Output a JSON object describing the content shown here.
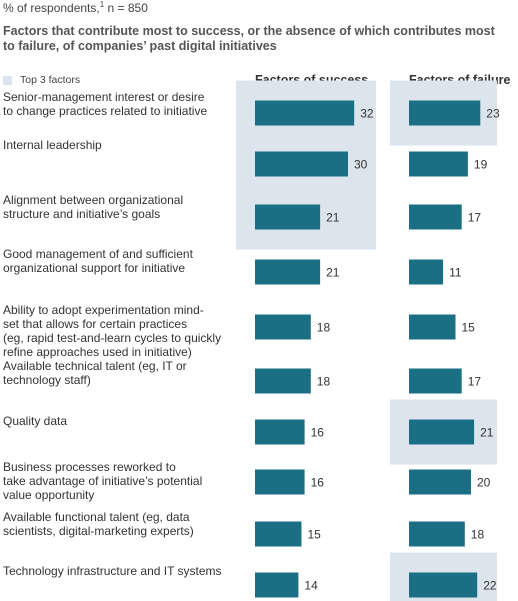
{
  "header": {
    "respondents_prefix": "% of respondents,",
    "respondents_sup": "1",
    "respondents_suffix": " n = 850",
    "title": "Factors that contribute most to success, or the absence of which contributes most to failure, of companies’ past digital initiatives",
    "legend_label": "Top 3 factors"
  },
  "colors": {
    "bar": "#1b6f84",
    "highlight": "#dce5ed",
    "text": "#333333"
  },
  "chart_data": {
    "type": "bar",
    "orientation": "horizontal",
    "categories": [
      "Senior-management interest or desire to change practices related to initiative",
      "Internal leadership",
      "Alignment between organizational structure and initiative’s goals",
      "Good management of and sufficient organizational support for initiative",
      "Ability to adopt experimentation mind-set that allows for certain practices (eg, rapid test-and-learn cycles to quickly refine approaches used in initiative)",
      "Available technical talent (eg, IT or technology staff)",
      "Quality data",
      "Business processes reworked to take advantage of initiative’s potential value opportunity",
      "Available functional talent (eg, data scientists, digital-marketing experts)",
      "Technology infrastructure and IT systems"
    ],
    "label_lines": [
      [
        "Senior-management interest or desire",
        "to change practices related to initiative"
      ],
      [
        "Internal leadership"
      ],
      [
        "Alignment between organizational",
        "structure and initiative’s goals"
      ],
      [
        "Good management of and sufficient",
        "organizational support for initiative"
      ],
      [
        "Ability to adopt experimentation mind-",
        "set that allows for certain practices",
        "(eg, rapid test-and-learn cycles to quickly",
        "refine approaches used in initiative)"
      ],
      [
        "Available technical talent (eg, IT or",
        "technology staff)"
      ],
      [
        "Quality data"
      ],
      [
        "Business processes reworked to",
        "take advantage of initiative’s potential",
        "value opportunity"
      ],
      [
        "Available functional talent (eg, data",
        "scientists, digital-marketing experts)"
      ],
      [
        "Technology infrastructure and IT systems"
      ]
    ],
    "series": [
      {
        "name": "Factors of success",
        "values": [
          32,
          30,
          21,
          21,
          18,
          18,
          16,
          16,
          15,
          14
        ],
        "top3": [
          0,
          1,
          2
        ]
      },
      {
        "name": "Factors of failure",
        "values": [
          23,
          19,
          17,
          11,
          15,
          17,
          21,
          20,
          18,
          22
        ],
        "top3": [
          0,
          6,
          9
        ]
      }
    ]
  }
}
